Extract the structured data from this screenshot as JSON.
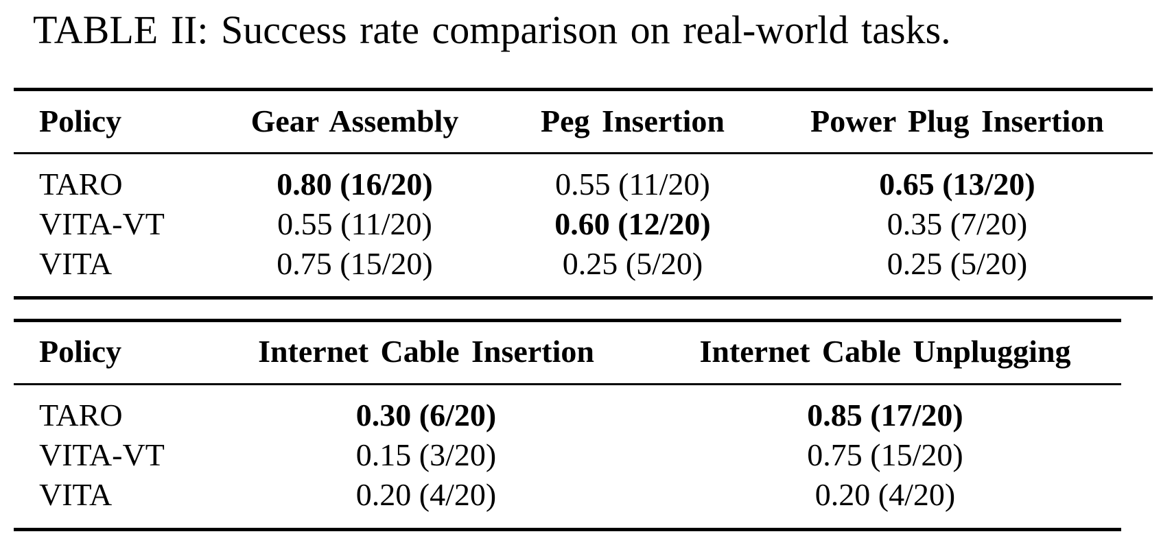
{
  "caption": "TABLE II: Success rate comparison on real-world tasks.",
  "table1": {
    "headers": [
      "Policy",
      "Gear Assembly",
      "Peg Insertion",
      "Power Plug Insertion"
    ],
    "rows": [
      {
        "policy": "TARO",
        "values": [
          "0.80 (16/20)",
          "0.55 (11/20)",
          "0.65 (13/20)"
        ],
        "bold": [
          true,
          false,
          true
        ]
      },
      {
        "policy": "VITA-VT",
        "values": [
          "0.55 (11/20)",
          "0.60 (12/20)",
          "0.35 (7/20)"
        ],
        "bold": [
          false,
          true,
          false
        ]
      },
      {
        "policy": "VITA",
        "values": [
          "0.75 (15/20)",
          "0.25 (5/20)",
          "0.25 (5/20)"
        ],
        "bold": [
          false,
          false,
          false
        ]
      }
    ]
  },
  "table2": {
    "headers": [
      "Policy",
      "Internet Cable Insertion",
      "Internet Cable Unplugging"
    ],
    "rows": [
      {
        "policy": "TARO",
        "values": [
          "0.30 (6/20)",
          "0.85 (17/20)"
        ],
        "bold": [
          true,
          true
        ]
      },
      {
        "policy": "VITA-VT",
        "values": [
          "0.15 (3/20)",
          "0.75 (15/20)"
        ],
        "bold": [
          false,
          false
        ]
      },
      {
        "policy": "VITA",
        "values": [
          "0.20 (4/20)",
          "0.20 (4/20)"
        ],
        "bold": [
          false,
          false
        ]
      }
    ]
  }
}
